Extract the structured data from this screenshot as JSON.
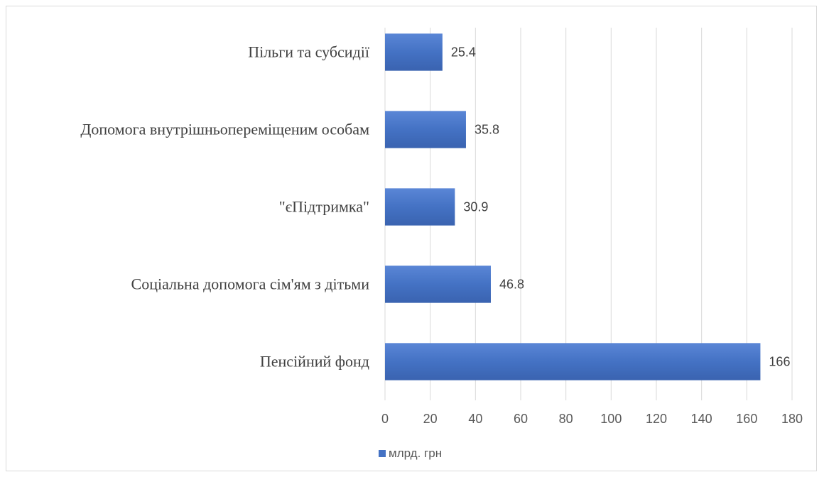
{
  "chart_data": {
    "type": "bar",
    "orientation": "horizontal",
    "categories": [
      "Пільги та субсидії",
      "Допомога внутрішньопереміщеним особам",
      "\"єПідтримка\"",
      "Соціальна допомога сім'ям з дітьми",
      "Пенсійний фонд"
    ],
    "series": [
      {
        "name": "млрд. грн",
        "values": [
          25.4,
          35.8,
          30.9,
          46.8,
          166
        ],
        "color": "#4472c4"
      }
    ],
    "xlim": [
      0,
      180
    ],
    "x_ticks": [
      "0",
      "20",
      "40",
      "60",
      "80",
      "100",
      "120",
      "140",
      "160",
      "180"
    ],
    "grid": true,
    "legend_position": "bottom"
  }
}
